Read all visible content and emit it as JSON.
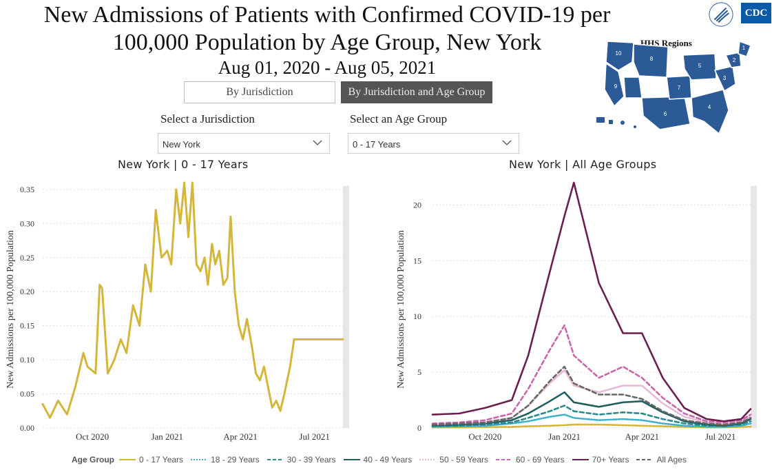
{
  "header": {
    "title_line1": "New Admissions of Patients with Confirmed COVID-19 per",
    "title_line2": "100,000 Population by Age Group, New York",
    "date_range": "Aug 01, 2020 - Aug 05, 2021",
    "hhs_label": "HHS Regions",
    "cdc_label": "CDC"
  },
  "toggles": {
    "by_jurisdiction": "By Jurisdiction",
    "by_jurisdiction_age": "By Jurisdiction and Age Group",
    "active": "By Jurisdiction and Age Group"
  },
  "filters": {
    "jurisdiction_label": "Select a Jurisdiction",
    "jurisdiction_value": "New York",
    "age_label": "Select an Age Group",
    "age_value": "0 - 17 Years"
  },
  "hhs_regions": [
    "1",
    "2",
    "3",
    "4",
    "5",
    "6",
    "7",
    "8",
    "9",
    "10"
  ],
  "chart_data": [
    {
      "type": "line",
      "title": "New York | 0 - 17 Years",
      "ylabel": "New Admissions per 100,000 Population",
      "xlabel": "",
      "ylim": [
        0,
        0.36
      ],
      "yticks": [
        "0.00",
        "0.05",
        "0.10",
        "0.15",
        "0.20",
        "0.25",
        "0.30",
        "0.35"
      ],
      "xticks": [
        "Oct 2020",
        "Jan 2021",
        "Apr 2021",
        "Jul 2021"
      ],
      "grid": true,
      "series": [
        {
          "name": "0 - 17 Years",
          "color": "#d4b63a",
          "x": [
            "2020-08-01",
            "2020-08-10",
            "2020-08-20",
            "2020-08-31",
            "2020-09-10",
            "2020-09-20",
            "2020-09-25",
            "2020-10-05",
            "2020-10-10",
            "2020-10-13",
            "2020-10-20",
            "2020-10-28",
            "2020-11-05",
            "2020-11-12",
            "2020-11-20",
            "2020-11-28",
            "2020-12-05",
            "2020-12-12",
            "2020-12-18",
            "2020-12-25",
            "2021-01-01",
            "2021-01-06",
            "2021-01-12",
            "2021-01-17",
            "2021-01-22",
            "2021-01-27",
            "2021-02-01",
            "2021-02-06",
            "2021-02-11",
            "2021-02-16",
            "2021-02-20",
            "2021-02-25",
            "2021-03-01",
            "2021-03-06",
            "2021-03-11",
            "2021-03-16",
            "2021-03-20",
            "2021-03-25",
            "2021-03-30",
            "2021-04-04",
            "2021-04-09",
            "2021-04-15",
            "2021-04-20",
            "2021-04-25",
            "2021-04-30",
            "2021-05-05",
            "2021-05-10",
            "2021-05-15",
            "2021-05-20",
            "2021-05-25",
            "2021-06-01",
            "2021-06-06",
            "2021-06-12",
            "2021-06-20",
            "2021-06-27",
            "2021-07-05",
            "2021-07-12",
            "2021-07-20",
            "2021-07-28",
            "2021-08-05"
          ],
          "values": [
            0.035,
            0.015,
            0.04,
            0.02,
            0.06,
            0.11,
            0.09,
            0.08,
            0.21,
            0.205,
            0.08,
            0.1,
            0.13,
            0.11,
            0.18,
            0.15,
            0.24,
            0.2,
            0.32,
            0.25,
            0.26,
            0.24,
            0.35,
            0.3,
            0.36,
            0.28,
            0.36,
            0.24,
            0.23,
            0.25,
            0.21,
            0.27,
            0.24,
            0.26,
            0.21,
            0.22,
            0.31,
            0.2,
            0.15,
            0.13,
            0.16,
            0.12,
            0.08,
            0.07,
            0.09,
            0.06,
            0.03,
            0.04,
            0.025,
            0.05,
            0.09,
            0.13,
            0.13,
            0.13,
            0.13,
            0.13,
            0.13,
            0.13,
            0.13,
            0.13
          ]
        }
      ]
    },
    {
      "type": "line",
      "title": "New York | All Age Groups",
      "ylabel": "New Admissions per 100,000 Population",
      "xlabel": "",
      "ylim": [
        0,
        22
      ],
      "yticks": [
        "0",
        "5",
        "10",
        "15",
        "20"
      ],
      "xticks": [
        "Oct 2020",
        "Jan 2021",
        "Apr 2021",
        "Jul 2021"
      ],
      "grid": true,
      "legend_title": "Age Group",
      "legend_position": "bottom",
      "series": [
        {
          "name": "0 - 17 Years",
          "color": "#d4b63a",
          "dash": "solid",
          "values": [
            0.05,
            0.05,
            0.08,
            0.1,
            0.15,
            0.2,
            0.25,
            0.3,
            0.3,
            0.25,
            0.2,
            0.15,
            0.1,
            0.05,
            0.05,
            0.1,
            0.12
          ]
        },
        {
          "name": "18 - 29 Years",
          "color": "#3bb0c9",
          "dash": "dotted",
          "values": [
            0.1,
            0.15,
            0.2,
            0.4,
            0.6,
            1.0,
            1.2,
            0.9,
            0.7,
            0.8,
            0.7,
            0.4,
            0.2,
            0.1,
            0.1,
            0.2,
            0.4
          ]
        },
        {
          "name": "30 - 39 Years",
          "color": "#2a8a8c",
          "dash": "dashed",
          "values": [
            0.2,
            0.2,
            0.3,
            0.5,
            0.9,
            1.5,
            2.0,
            1.5,
            1.2,
            1.4,
            1.3,
            0.8,
            0.4,
            0.2,
            0.2,
            0.3,
            0.6
          ]
        },
        {
          "name": "40 - 49 Years",
          "color": "#1f5f5f",
          "dash": "solid",
          "values": [
            0.2,
            0.3,
            0.4,
            0.7,
            1.3,
            2.4,
            3.2,
            2.3,
            1.9,
            2.3,
            2.4,
            1.4,
            0.6,
            0.3,
            0.2,
            0.4,
            0.8
          ]
        },
        {
          "name": "50 - 59 Years",
          "color": "#e6b8d6",
          "dash": "dotted",
          "values": [
            0.3,
            0.4,
            0.5,
            0.9,
            2.0,
            4.0,
            5.2,
            3.8,
            3.2,
            3.8,
            3.8,
            2.2,
            1.0,
            0.5,
            0.4,
            0.6,
            1.0
          ]
        },
        {
          "name": "60 - 69 Years",
          "color": "#cc66aa",
          "dash": "dashed",
          "values": [
            0.4,
            0.5,
            0.7,
            1.3,
            3.5,
            7.0,
            9.2,
            6.5,
            4.5,
            5.5,
            4.5,
            2.7,
            1.3,
            0.6,
            0.5,
            0.7,
            1.2
          ]
        },
        {
          "name": "70+ Years",
          "color": "#6a1f4f",
          "dash": "solid",
          "values": [
            1.2,
            1.3,
            1.8,
            2.5,
            6.5,
            14.0,
            19.0,
            22.0,
            13.0,
            8.5,
            8.5,
            4.5,
            1.8,
            0.8,
            0.6,
            0.8,
            1.7
          ]
        },
        {
          "name": "All Ages",
          "color": "#666666",
          "dash": "dashed",
          "values": [
            0.3,
            0.4,
            0.5,
            0.9,
            2.0,
            4.2,
            5.5,
            4.0,
            3.0,
            3.0,
            2.6,
            1.5,
            0.7,
            0.4,
            0.3,
            0.5,
            0.9
          ]
        }
      ],
      "x": [
        "2020-08-01",
        "2020-09-01",
        "2020-10-01",
        "2020-11-01",
        "2020-11-20",
        "2020-12-15",
        "2021-01-01",
        "2021-01-12",
        "2021-02-10",
        "2021-03-10",
        "2021-04-01",
        "2021-04-25",
        "2021-05-20",
        "2021-06-15",
        "2021-07-05",
        "2021-07-25",
        "2021-08-05"
      ]
    }
  ]
}
